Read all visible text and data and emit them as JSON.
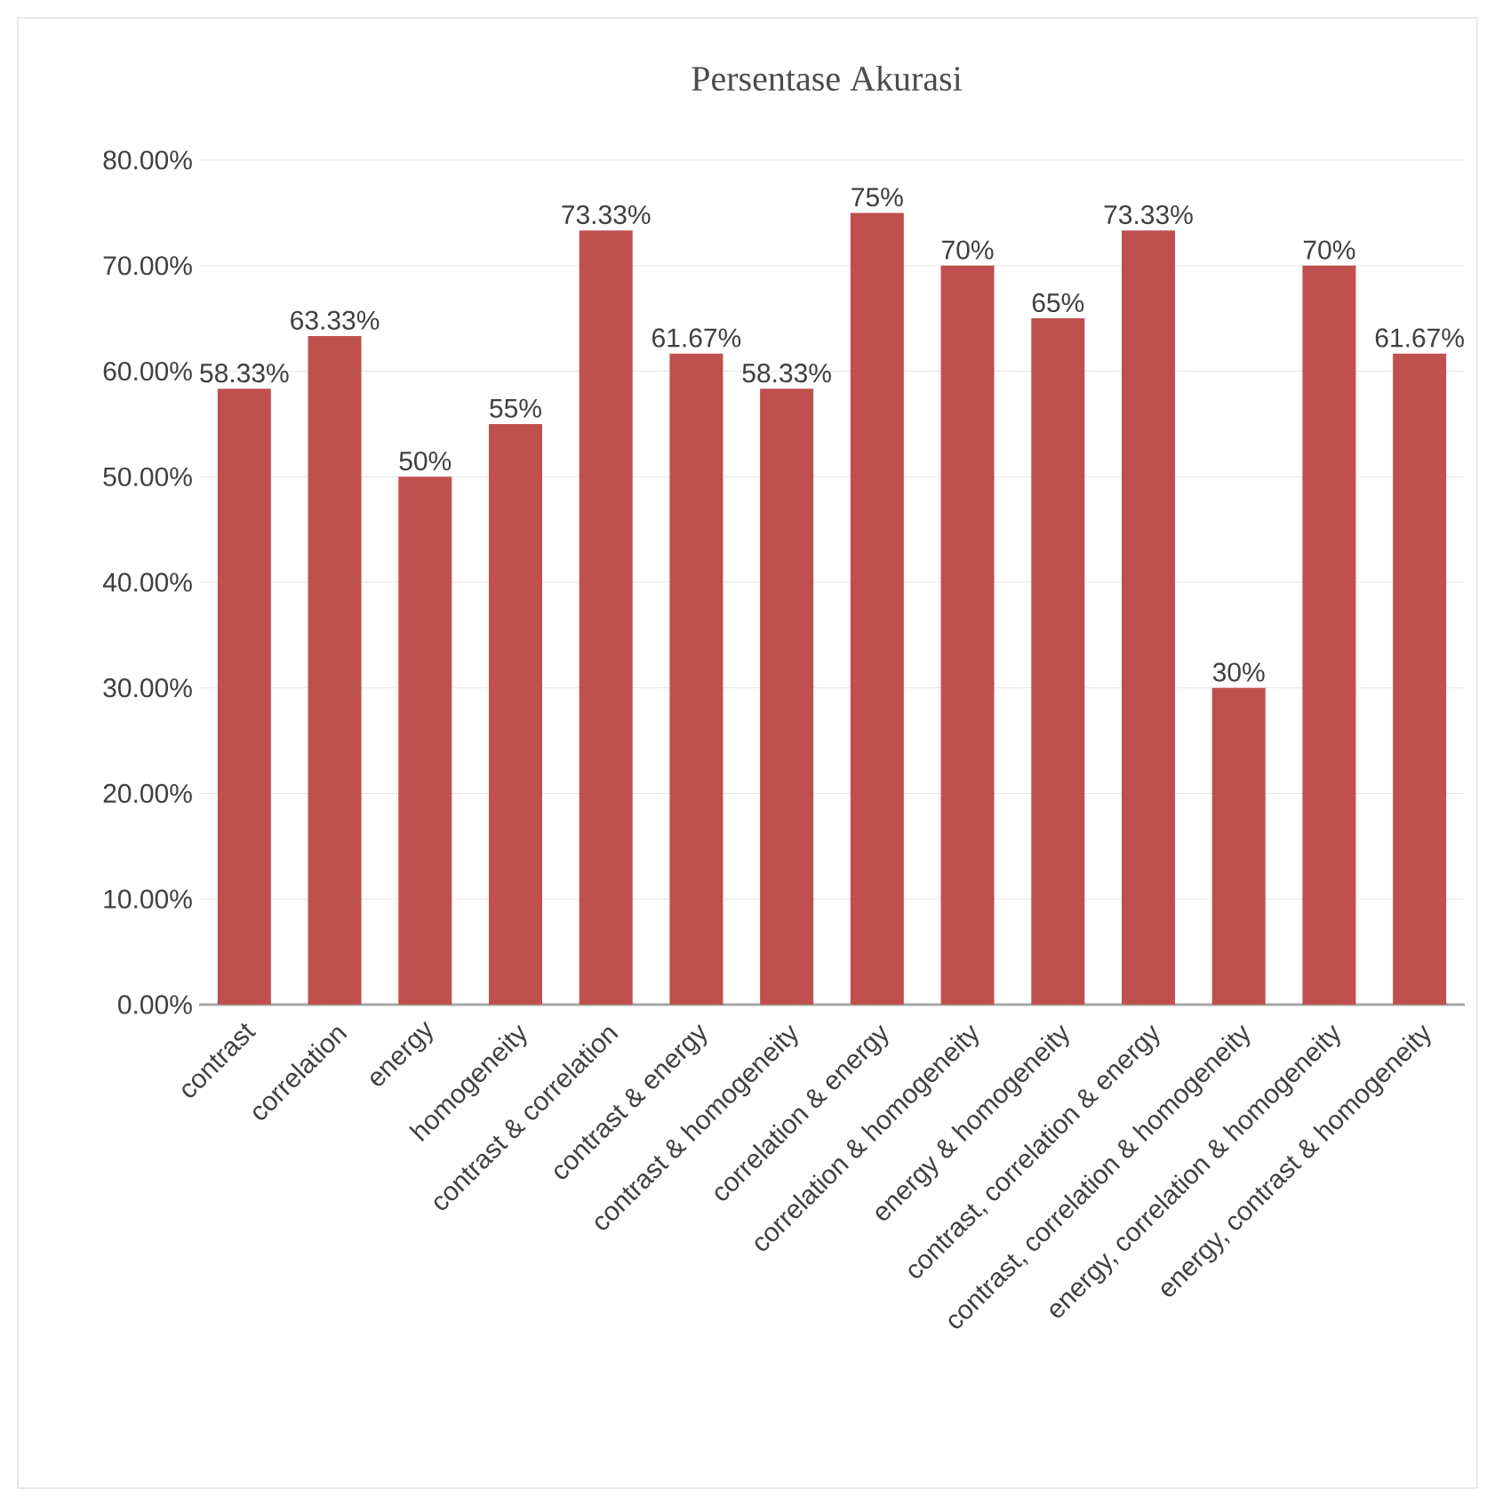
{
  "chart_data": {
    "type": "bar",
    "title": "Persentase Akurasi",
    "categories": [
      "contrast",
      "correlation",
      "energy",
      "homogeneity",
      "contrast & correlation",
      "contrast & energy",
      "contrast & homogeneity",
      "correlation & energy",
      "correlation & homogeneity",
      "energy & homogeneity",
      "contrast, correlation & energy",
      "contrast, correlation & homogeneity",
      "energy, correlation & homogeneity",
      "energy, contrast & homogeneity"
    ],
    "values": [
      58.33,
      63.33,
      50,
      55,
      73.33,
      61.67,
      58.33,
      75,
      70,
      65,
      73.33,
      30,
      70,
      61.67
    ],
    "value_labels": [
      "58.33%",
      "63.33%",
      "50%",
      "55%",
      "73.33%",
      "61.67%",
      "58.33%",
      "75%",
      "70%",
      "65%",
      "73.33%",
      "30%",
      "70%",
      "61.67%"
    ],
    "data_labels": true,
    "color": "#c0504d",
    "ylim": [
      0,
      80
    ],
    "yticks": [
      {
        "value": 0,
        "label": "0.00%"
      },
      {
        "value": 10,
        "label": "10.00%"
      },
      {
        "value": 20,
        "label": "20.00%"
      },
      {
        "value": 30,
        "label": "30.00%"
      },
      {
        "value": 40,
        "label": "40.00%"
      },
      {
        "value": 50,
        "label": "50.00%"
      },
      {
        "value": 60,
        "label": "60.00%"
      },
      {
        "value": 70,
        "label": "70.00%"
      },
      {
        "value": 80,
        "label": "80.00%"
      }
    ],
    "grid": "y"
  }
}
